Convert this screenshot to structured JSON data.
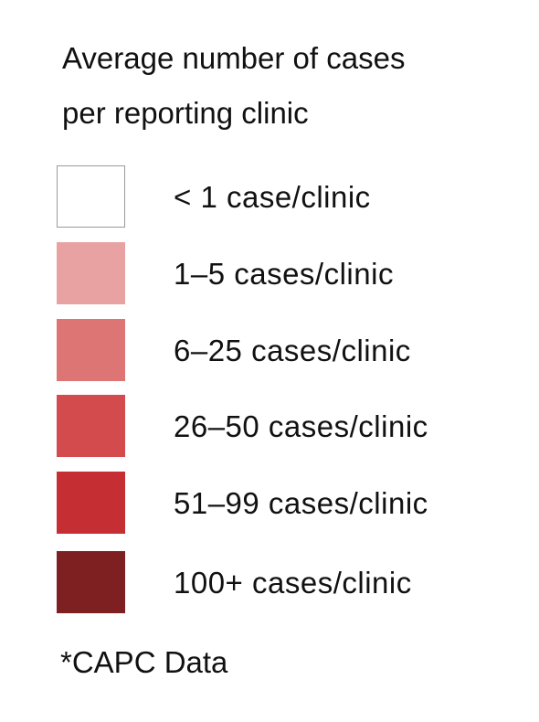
{
  "legend": {
    "title_line1": "Average number of cases",
    "title_line2": "per reporting clinic",
    "items": [
      {
        "label": "< 1 case/clinic",
        "color": "#ffffff",
        "outlined": true
      },
      {
        "label": "1–5  cases/clinic",
        "color": "#e8a2a2",
        "outlined": false
      },
      {
        "label": "6–25   cases/clinic",
        "color": "#de7575",
        "outlined": false
      },
      {
        "label": "26–50   cases/clinic",
        "color": "#d44b4e",
        "outlined": false
      },
      {
        "label": "51–99  cases/clinic",
        "color": "#c52f33",
        "outlined": false
      },
      {
        "label": "100+ cases/clinic",
        "color": "#7e2021",
        "outlined": false
      }
    ]
  },
  "source_note": "*CAPC Data"
}
